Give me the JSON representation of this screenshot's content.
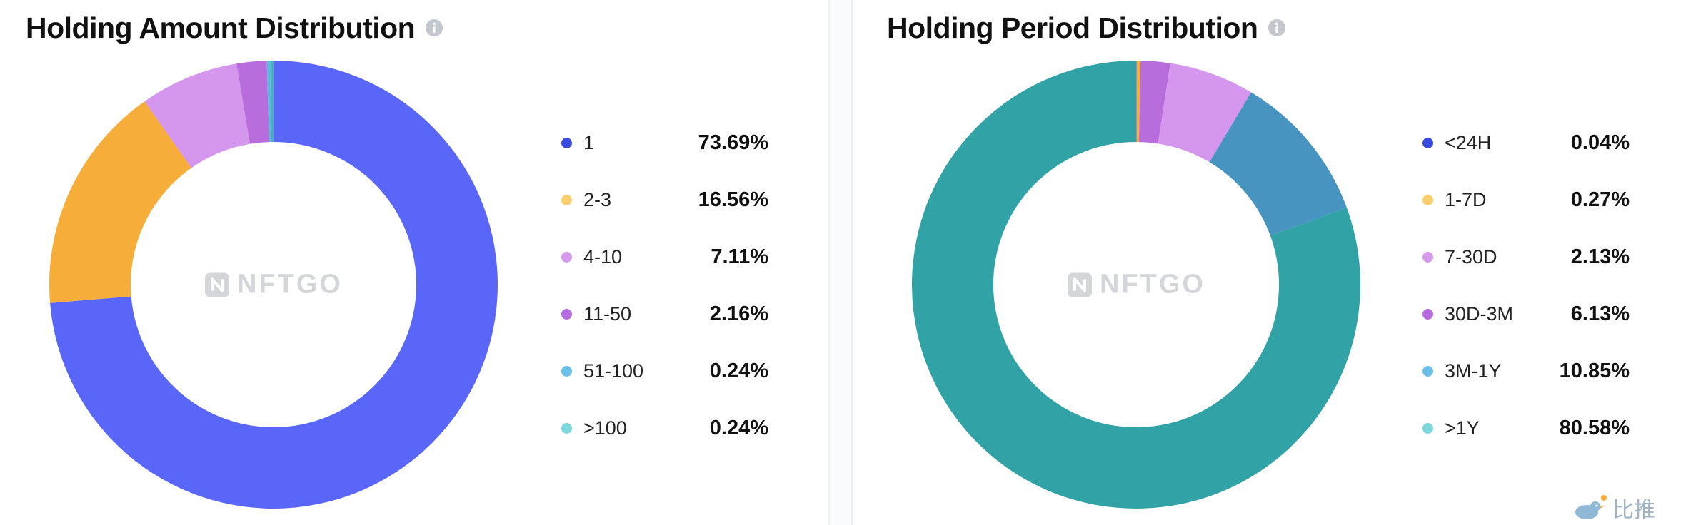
{
  "chart_data": [
    {
      "type": "pie",
      "title": "Holding Amount Distribution",
      "unit": "%",
      "categories": [
        "1",
        "2-3",
        "4-10",
        "11-50",
        "51-100",
        ">100"
      ],
      "values": [
        73.69,
        16.56,
        7.11,
        2.16,
        0.24,
        0.24
      ],
      "value_labels": [
        "73.69%",
        "16.56%",
        "7.11%",
        "2.16%",
        "0.24%",
        "0.24%"
      ],
      "legend_colors": [
        "#3b4be0",
        "#fbcf6e",
        "#d79bec",
        "#b66bde",
        "#6cc0ea",
        "#7ed7da"
      ],
      "slice_colors": [
        "#5a66f7",
        "#f6ad39",
        "#d596ee",
        "#b76ddc",
        "#5fb7e4",
        "#46b3b4"
      ],
      "donut": true,
      "legend_position": "right",
      "watermark": "NFTGO"
    },
    {
      "type": "pie",
      "title": "Holding Period Distribution",
      "unit": "%",
      "categories": [
        "<24H",
        "1-7D",
        "7-30D",
        "30D-3M",
        "3M-1Y",
        ">1Y"
      ],
      "values": [
        0.04,
        0.27,
        2.13,
        6.13,
        10.85,
        80.58
      ],
      "value_labels": [
        "0.04%",
        "0.27%",
        "2.13%",
        "6.13%",
        "10.85%",
        "80.58%"
      ],
      "legend_colors": [
        "#3b4be0",
        "#fbcf6e",
        "#d79bec",
        "#b66bde",
        "#6cc0ea",
        "#7ed7da"
      ],
      "slice_colors": [
        "#5a66f7",
        "#f6ad39",
        "#b76ddc",
        "#d596ee",
        "#4894c0",
        "#31a2a6"
      ],
      "donut": true,
      "legend_position": "right",
      "watermark": "NFTGO"
    }
  ],
  "icons": {
    "info": "info-icon",
    "watermark_logo": "nftgo-logo-icon",
    "corner_logo": "bird-logo-icon"
  },
  "corner_mark": {
    "text": "比推"
  }
}
